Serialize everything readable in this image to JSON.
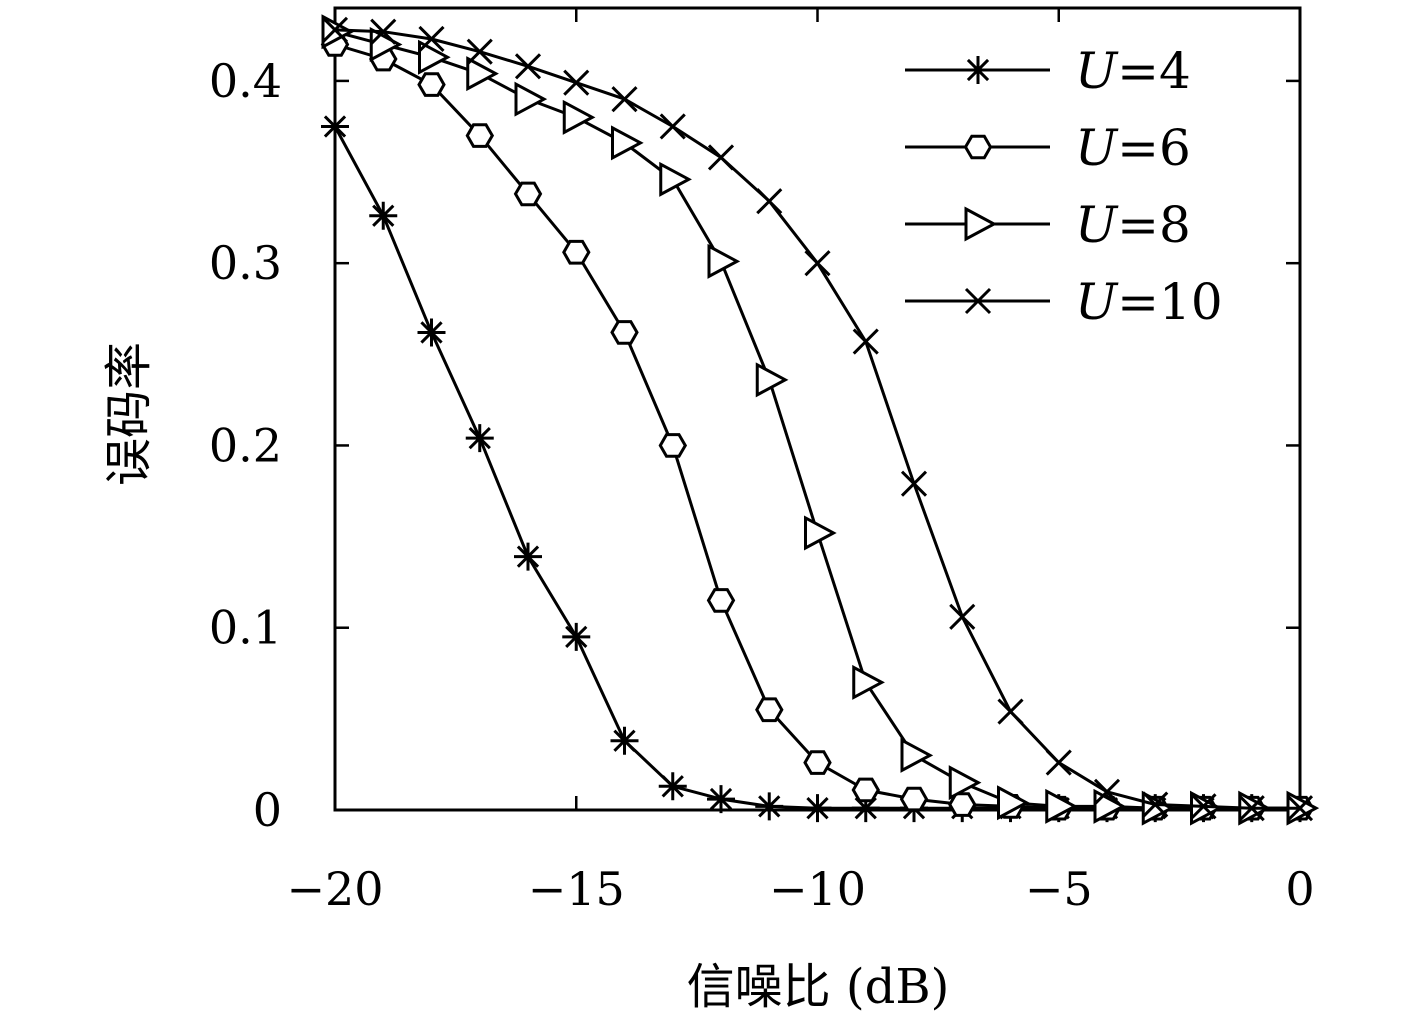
{
  "chart_data": {
    "type": "line",
    "title": "",
    "xlabel": "信噪比 (dB)",
    "ylabel": "误码率",
    "xlim": [
      -20,
      0
    ],
    "ylim": [
      0,
      0.44
    ],
    "xticks": [
      -20,
      -15,
      -10,
      -5,
      0
    ],
    "xtick_labels": [
      "−20",
      "−15",
      "−10",
      "−5",
      "0"
    ],
    "yticks": [
      0,
      0.1,
      0.2,
      0.3,
      0.4
    ],
    "ytick_labels": [
      "0",
      "0.1",
      "0.2",
      "0.3",
      "0.4"
    ],
    "grid": false,
    "legend_position": "top-right",
    "x": [
      -20,
      -19,
      -18,
      -17,
      -16,
      -15,
      -14,
      -13,
      -12,
      -11,
      -10,
      -9,
      -8,
      -7,
      -6,
      -5,
      -4,
      -3,
      -2,
      -1,
      0
    ],
    "series": [
      {
        "name": "U=4",
        "name_var": "U",
        "name_rest": "=4",
        "marker": "asterisk",
        "values": [
          0.375,
          0.326,
          0.262,
          0.204,
          0.139,
          0.095,
          0.038,
          0.013,
          0.006,
          0.002,
          0.001,
          0.001,
          0.001,
          0.001,
          0.001,
          0.001,
          0.001,
          0.001,
          0.001,
          0.001,
          0.001
        ]
      },
      {
        "name": "U=6",
        "name_var": "U",
        "name_rest": "=6",
        "marker": "hexagon",
        "values": [
          0.42,
          0.412,
          0.398,
          0.37,
          0.338,
          0.306,
          0.262,
          0.2,
          0.115,
          0.055,
          0.026,
          0.011,
          0.006,
          0.003,
          0.002,
          0.001,
          0.001,
          0.001,
          0.001,
          0.001,
          0.001
        ]
      },
      {
        "name": "U=8",
        "name_var": "U",
        "name_rest": "=8",
        "marker": "triangle-right",
        "values": [
          0.427,
          0.42,
          0.413,
          0.404,
          0.39,
          0.38,
          0.366,
          0.346,
          0.301,
          0.236,
          0.152,
          0.07,
          0.03,
          0.015,
          0.004,
          0.002,
          0.002,
          0.001,
          0.001,
          0.001,
          0.001
        ]
      },
      {
        "name": "U=10",
        "name_var": "U",
        "name_rest": "=10",
        "marker": "cross",
        "values": [
          0.428,
          0.427,
          0.423,
          0.416,
          0.408,
          0.399,
          0.39,
          0.375,
          0.358,
          0.334,
          0.3,
          0.257,
          0.179,
          0.106,
          0.054,
          0.026,
          0.01,
          0.003,
          0.002,
          0.001,
          0.001
        ]
      }
    ]
  }
}
